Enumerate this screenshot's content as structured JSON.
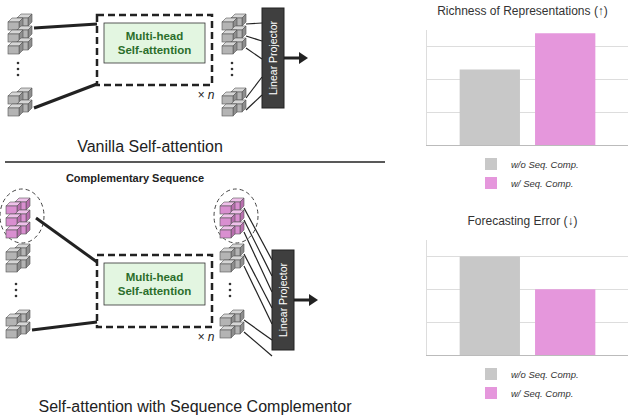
{
  "diagram": {
    "panels": [
      {
        "caption": "Vanilla Self-attention",
        "block": "Multi-head Self-attention",
        "repeat": "× n",
        "projector": "Linear Projector"
      },
      {
        "caption": "Self-attention with Sequence Complementor",
        "label": "Complementary Sequence",
        "block": "Multi-head Self-attention",
        "repeat": "× n",
        "projector": "Linear Projector"
      }
    ]
  },
  "chart_data": [
    {
      "type": "bar",
      "title": "Richness of Representations (↑)",
      "categories": [
        null
      ],
      "series": [
        {
          "name": "w/o Seq. Comp.",
          "color": "#c8c8c8",
          "values": [
            2.3
          ]
        },
        {
          "name": "w/ Seq. Comp.",
          "color": "#e597dc",
          "values": [
            3.4
          ]
        }
      ],
      "ylim": [
        0,
        3.5
      ],
      "yticks": [
        0,
        1,
        2,
        3
      ],
      "grid": true,
      "legend": "bottom",
      "tick_labels": false
    },
    {
      "type": "bar",
      "title": "Forecasting Error (↓)",
      "categories": [
        null
      ],
      "series": [
        {
          "name": "w/o Seq. Comp.",
          "color": "#c8c8c8",
          "values": [
            3.0
          ]
        },
        {
          "name": "w/ Seq. Comp.",
          "color": "#e597dc",
          "values": [
            2.0
          ]
        }
      ],
      "ylim": [
        0,
        3.5
      ],
      "yticks": [
        0,
        1,
        2,
        3
      ],
      "grid": true,
      "legend": "bottom",
      "tick_labels": false
    }
  ]
}
